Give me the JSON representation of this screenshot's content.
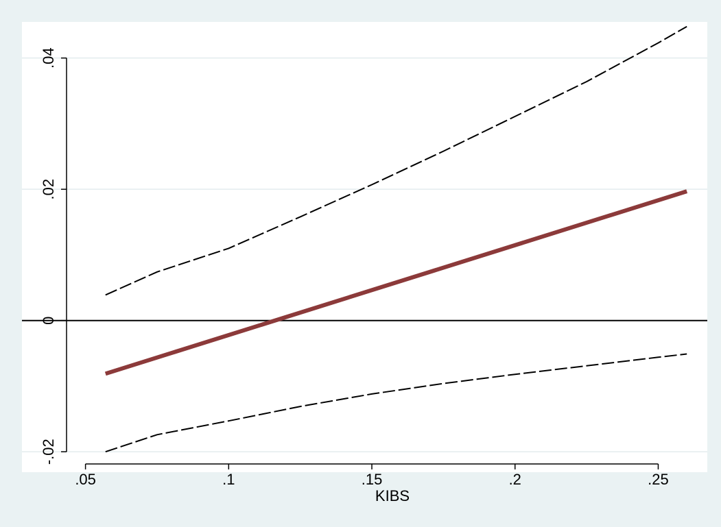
{
  "chart_data": {
    "type": "line",
    "title": "",
    "xlabel": "KIBS",
    "ylabel": "",
    "xlim": [
      0.0465,
      0.2645
    ],
    "ylim": [
      -0.0205,
      0.0455
    ],
    "grid": "horizontal",
    "legend": "none",
    "x_ticks": [
      {
        "value": 0.05,
        "label": ".05"
      },
      {
        "value": 0.1,
        "label": ".1"
      },
      {
        "value": 0.15,
        "label": ".15"
      },
      {
        "value": 0.2,
        "label": ".2"
      },
      {
        "value": 0.25,
        "label": ".25"
      }
    ],
    "y_ticks": [
      {
        "value": -0.02,
        "label": "-.02"
      },
      {
        "value": 0.0,
        "label": "0"
      },
      {
        "value": 0.02,
        "label": ".02"
      },
      {
        "value": 0.04,
        "label": ".04"
      }
    ],
    "reference_line": {
      "y": 0,
      "color": "#000000"
    },
    "series": [
      {
        "role": "estimate",
        "color": "#8c3a3a",
        "style": "solid",
        "x": [
          0.057,
          0.26
        ],
        "y": [
          -0.0081,
          0.0197
        ]
      },
      {
        "role": "upper-bound",
        "color": "#000000",
        "style": "dashed",
        "x": [
          0.057,
          0.075,
          0.1,
          0.125,
          0.15,
          0.175,
          0.2,
          0.225,
          0.25,
          0.26
        ],
        "y": [
          0.0039,
          0.0074,
          0.011,
          0.0158,
          0.0207,
          0.0258,
          0.0311,
          0.0364,
          0.0423,
          0.0448
        ]
      },
      {
        "role": "lower-bound",
        "color": "#000000",
        "style": "dashed",
        "x": [
          0.057,
          0.075,
          0.1,
          0.125,
          0.15,
          0.175,
          0.2,
          0.225,
          0.25,
          0.26
        ],
        "y": [
          -0.02,
          -0.0174,
          -0.0153,
          -0.0131,
          -0.0112,
          -0.0096,
          -0.0082,
          -0.0069,
          -0.0056,
          -0.0051
        ]
      }
    ]
  },
  "colors": {
    "background": "#eaf2f3",
    "plot_background": "#ffffff",
    "grid": "#e3ecee"
  }
}
